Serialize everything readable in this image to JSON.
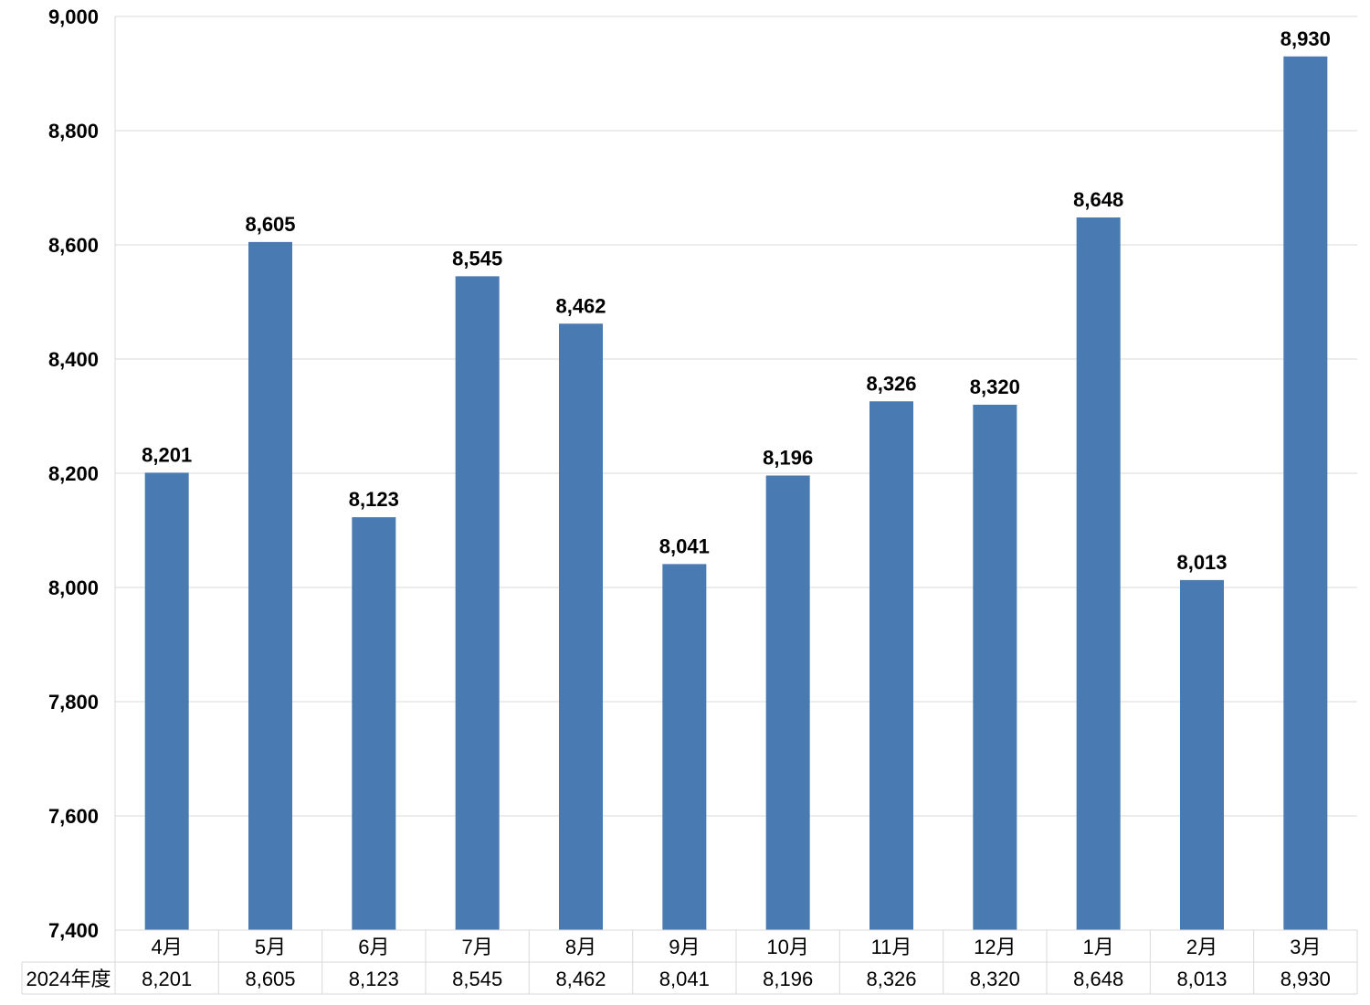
{
  "chart_data": {
    "type": "bar",
    "categories": [
      "4月",
      "5月",
      "6月",
      "7月",
      "8月",
      "9月",
      "10月",
      "11月",
      "12月",
      "1月",
      "2月",
      "3月"
    ],
    "series": [
      {
        "name": "2024年度",
        "values": [
          8201,
          8605,
          8123,
          8545,
          8462,
          8041,
          8196,
          8326,
          8320,
          8648,
          8013,
          8930
        ],
        "display_values": [
          "8,201",
          "8,605",
          "8,123",
          "8,545",
          "8,462",
          "8,041",
          "8,196",
          "8,326",
          "8,320",
          "8,648",
          "8,013",
          "8,930"
        ]
      }
    ],
    "ylim": [
      7400,
      9000
    ],
    "y_ticks": [
      7400,
      7600,
      7800,
      8000,
      8200,
      8400,
      8600,
      8800,
      9000
    ],
    "y_tick_labels": [
      "7,400",
      "7,600",
      "7,800",
      "8,000",
      "8,200",
      "8,400",
      "8,600",
      "8,800",
      "9,000"
    ],
    "grid": true,
    "data_labels": true,
    "data_table": true,
    "colors": {
      "bar": "#4a7ab2",
      "grid": "#d9d9d9",
      "table_border": "#d9d9d9",
      "text": "#000000"
    }
  }
}
